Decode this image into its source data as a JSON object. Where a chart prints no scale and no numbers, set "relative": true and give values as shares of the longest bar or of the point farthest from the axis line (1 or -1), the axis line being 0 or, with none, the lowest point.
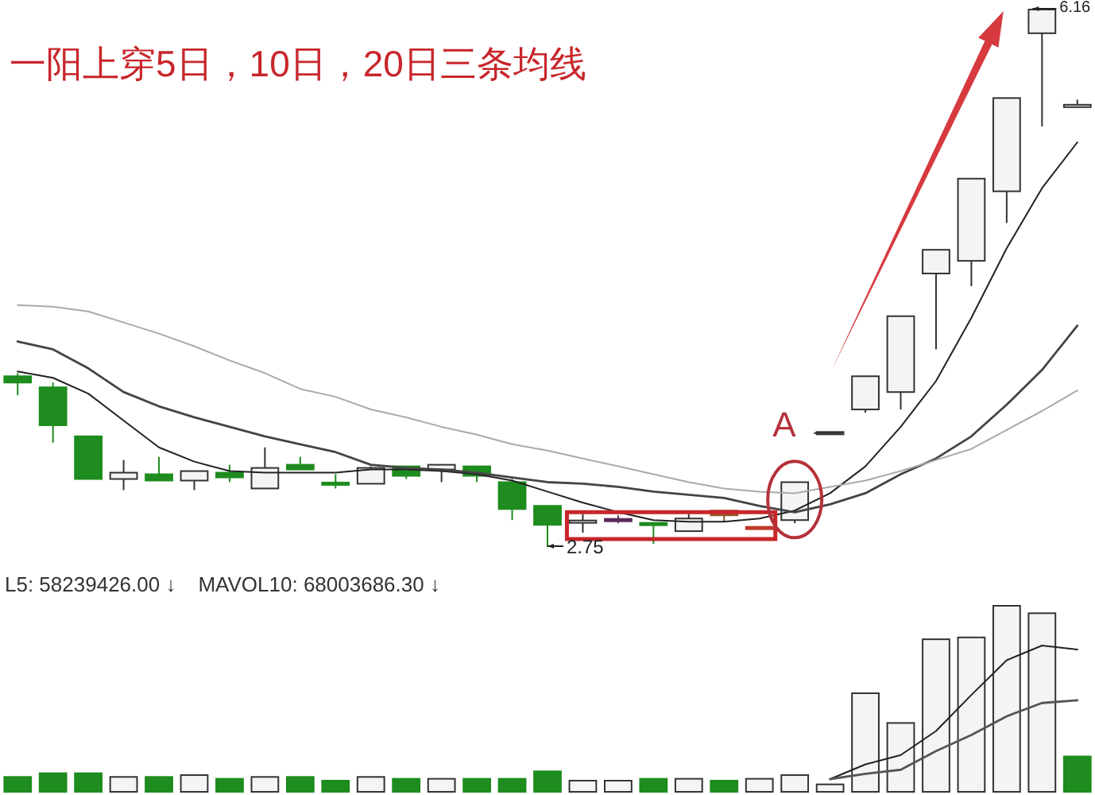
{
  "chart_data": [
    {
      "type": "candlestick",
      "title": "一阳上穿5日，10日，20日三条均线",
      "categories": [
        null,
        null,
        null,
        null,
        null,
        null,
        null,
        null,
        null,
        null,
        null,
        null,
        null,
        null,
        null,
        null,
        null,
        null,
        null,
        null,
        null,
        null,
        null,
        null,
        null,
        null,
        null,
        null,
        null,
        null,
        null
      ],
      "ohlc": [
        [
          3.83,
          3.85,
          3.71,
          3.79
        ],
        [
          3.76,
          3.79,
          3.41,
          3.52
        ],
        [
          3.45,
          3.45,
          3.18,
          3.18
        ],
        [
          3.18,
          3.3,
          3.11,
          3.22
        ],
        [
          3.21,
          3.32,
          3.17,
          3.17
        ],
        [
          3.17,
          3.23,
          3.11,
          3.23
        ],
        [
          3.22,
          3.27,
          3.16,
          3.19
        ],
        [
          3.12,
          3.38,
          3.12,
          3.25
        ],
        [
          3.27,
          3.32,
          3.24,
          3.24
        ],
        [
          3.15,
          3.21,
          3.12,
          3.15
        ],
        [
          3.15,
          3.26,
          3.15,
          3.25
        ],
        [
          3.26,
          3.26,
          3.18,
          3.2
        ],
        [
          3.24,
          3.27,
          3.16,
          3.27
        ],
        [
          3.26,
          3.26,
          3.16,
          3.2
        ],
        [
          3.16,
          3.18,
          2.92,
          2.99
        ],
        [
          3.01,
          3.01,
          2.75,
          2.89
        ],
        [
          2.91,
          2.96,
          2.84,
          2.91
        ],
        [
          2.92,
          2.95,
          2.9,
          2.92
        ],
        [
          2.9,
          2.9,
          2.77,
          2.89
        ],
        [
          2.85,
          2.96,
          2.85,
          2.93
        ],
        [
          2.98,
          2.98,
          2.91,
          2.95
        ],
        [
          2.87,
          2.87,
          2.87,
          2.87
        ],
        [
          2.92,
          3.16,
          2.9,
          3.16
        ],
        [
          3.47,
          3.47,
          3.47,
          3.47
        ],
        [
          3.62,
          3.83,
          3.6,
          3.83
        ],
        [
          3.73,
          4.21,
          3.62,
          4.21
        ],
        [
          4.48,
          4.63,
          4.0,
          4.63
        ],
        [
          4.56,
          5.08,
          4.4,
          5.08
        ],
        [
          5.0,
          5.59,
          4.8,
          5.59
        ],
        [
          6.0,
          6.16,
          5.41,
          6.15
        ],
        [
          5.54,
          5.58,
          5.54,
          5.54
        ]
      ],
      "colors": [
        "#1e8c1e",
        "#1e8c1e",
        "#1e8c1e",
        "#f4f4f4",
        "#1e8c1e",
        "#f4f4f4",
        "#1e8c1e",
        "#f4f4f4",
        "#1e8c1e",
        "#1e8c1e",
        "#f4f4f4",
        "#1e8c1e",
        "#f4f4f4",
        "#1e8c1e",
        "#1e8c1e",
        "#1e8c1e",
        "#f4f4f4",
        "#5a2a5a",
        "#1e8c1e",
        "#f4f4f4",
        "#8b5a2b",
        "#c0392b",
        "#f4f4f4",
        "#f4f4f4",
        "#f4f4f4",
        "#f4f4f4",
        "#f4f4f4",
        "#f4f4f4",
        "#f4f4f4",
        "#f4f4f4",
        "#f4f4f4"
      ],
      "series": [
        {
          "type": "line",
          "color": "#222222",
          "values": [
            3.86,
            3.82,
            3.72,
            3.55,
            3.38,
            3.29,
            3.23,
            3.22,
            3.22,
            3.22,
            3.24,
            3.24,
            3.23,
            3.21,
            3.17,
            3.1,
            3.03,
            2.97,
            2.92,
            2.91,
            2.91,
            2.93,
            2.98,
            3.09,
            3.26,
            3.51,
            3.8,
            4.2,
            4.64,
            5.02,
            5.31
          ]
        },
        {
          "type": "line",
          "color": "#444444",
          "values": [
            4.05,
            4.0,
            3.88,
            3.73,
            3.64,
            3.57,
            3.51,
            3.45,
            3.4,
            3.35,
            3.27,
            3.25,
            3.24,
            3.22,
            3.19,
            3.16,
            3.15,
            3.13,
            3.1,
            3.08,
            3.06,
            3.01,
            2.97,
            3.02,
            3.09,
            3.21,
            3.31,
            3.45,
            3.65,
            3.87,
            4.15
          ]
        },
        {
          "type": "line",
          "color": "#aaaaaa",
          "values": [
            4.28,
            4.27,
            4.24,
            4.17,
            4.1,
            4.02,
            3.93,
            3.85,
            3.75,
            3.7,
            3.62,
            3.57,
            3.51,
            3.46,
            3.4,
            3.36,
            3.31,
            3.26,
            3.21,
            3.16,
            3.12,
            3.1,
            3.09,
            3.13,
            3.17,
            3.23,
            3.3,
            3.37,
            3.49,
            3.61,
            3.74
          ]
        }
      ],
      "annotations": [
        "A",
        "2.75",
        "6.16"
      ]
    },
    {
      "type": "bar",
      "relative": true,
      "categories": [
        null,
        null,
        null,
        null,
        null,
        null,
        null,
        null,
        null,
        null,
        null,
        null,
        null,
        null,
        null,
        null,
        null,
        null,
        null,
        null,
        null,
        null,
        null,
        null,
        null,
        null,
        null,
        null,
        null,
        null,
        null
      ],
      "values": [
        0.08,
        0.1,
        0.1,
        0.08,
        0.08,
        0.09,
        0.07,
        0.08,
        0.08,
        0.06,
        0.08,
        0.07,
        0.07,
        0.07,
        0.07,
        0.11,
        0.06,
        0.06,
        0.07,
        0.07,
        0.06,
        0.07,
        0.09,
        0.04,
        0.53,
        0.37,
        0.82,
        0.83,
        1,
        0.96,
        0.19
      ],
      "colors": [
        "#1e8c1e",
        "#1e8c1e",
        "#1e8c1e",
        "#f4f4f4",
        "#1e8c1e",
        "#f4f4f4",
        "#1e8c1e",
        "#f4f4f4",
        "#1e8c1e",
        "#1e8c1e",
        "#f4f4f4",
        "#1e8c1e",
        "#f4f4f4",
        "#1e8c1e",
        "#1e8c1e",
        "#1e8c1e",
        "#f4f4f4",
        "#f4f4f4",
        "#1e8c1e",
        "#f4f4f4",
        "#1e8c1e",
        "#f4f4f4",
        "#f4f4f4",
        "#f4f4f4",
        "#f4f4f4",
        "#f4f4f4",
        "#f4f4f4",
        "#f4f4f4",
        "#f4f4f4",
        "#f4f4f4",
        "#1e8c1e"
      ],
      "annotations": [
        "L5: 58239426.00 ↓",
        "MAVOL10: 68003686.30 ↓"
      ]
    },
    {
      "type": "line",
      "relative": true,
      "categories": [
        null,
        null,
        null,
        null,
        null,
        null,
        null,
        null,
        null,
        null,
        null,
        null,
        null,
        null,
        null,
        null,
        null,
        null,
        null,
        null,
        null,
        null,
        null,
        null,
        null,
        null,
        null,
        null,
        null,
        null,
        null
      ],
      "series": [
        {
          "color": "#222222",
          "values": [
            null,
            null,
            null,
            null,
            null,
            null,
            null,
            null,
            null,
            null,
            null,
            null,
            null,
            null,
            null,
            null,
            null,
            null,
            null,
            null,
            null,
            null,
            null,
            0,
            0.11,
            0.18,
            0.36,
            0.63,
            0.89,
            1,
            0.97
          ]
        },
        {
          "color": "#555555",
          "values": [
            null,
            null,
            null,
            null,
            null,
            null,
            null,
            null,
            null,
            null,
            null,
            null,
            null,
            null,
            null,
            null,
            null,
            null,
            null,
            null,
            null,
            null,
            null,
            0,
            0.04,
            0.07,
            0.21,
            0.33,
            0.47,
            0.57,
            0.59
          ]
        }
      ]
    }
  ]
}
